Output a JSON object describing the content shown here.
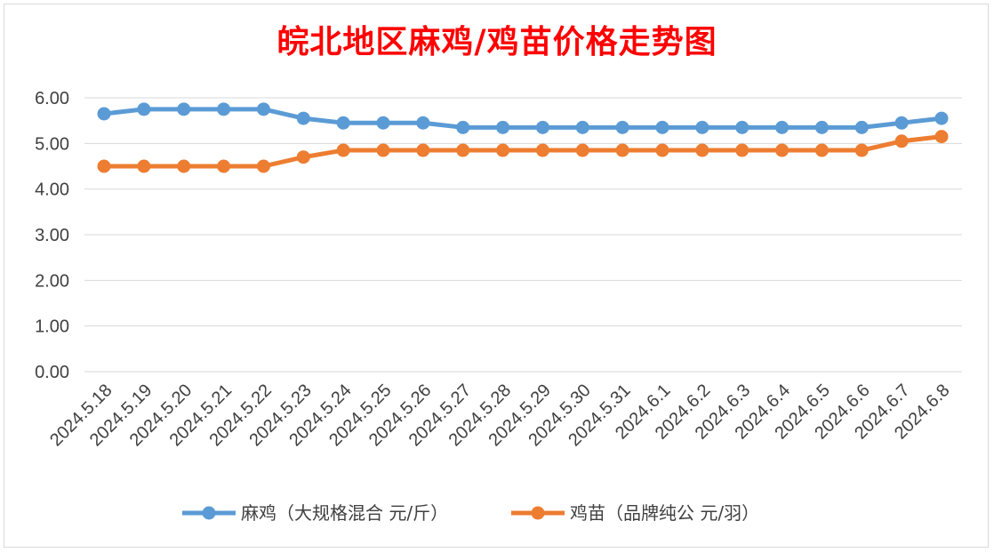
{
  "chart_data": {
    "type": "line",
    "title": "皖北地区麻鸡/鸡苗价格走势图",
    "xlabel": "",
    "ylabel": "",
    "ylim": [
      0,
      6
    ],
    "y_ticks": [
      "0.00",
      "1.00",
      "2.00",
      "3.00",
      "4.00",
      "5.00",
      "6.00"
    ],
    "categories": [
      "2024.5.18",
      "2024.5.19",
      "2024.5.20",
      "2024.5.21",
      "2024.5.22",
      "2024.5.23",
      "2024.5.24",
      "2024.5.25",
      "2024.5.26",
      "2024.5.27",
      "2024.5.28",
      "2024.5.29",
      "2024.5.30",
      "2024.5.31",
      "2024.6.1",
      "2024.6.2",
      "2024.6.3",
      "2024.6.4",
      "2024.6.5",
      "2024.6.6",
      "2024.6.7",
      "2024.6.8"
    ],
    "series": [
      {
        "name": "麻鸡（大规格混合 元/斤）",
        "color": "#5b9bd5",
        "values": [
          5.65,
          5.75,
          5.75,
          5.75,
          5.75,
          5.55,
          5.45,
          5.45,
          5.45,
          5.35,
          5.35,
          5.35,
          5.35,
          5.35,
          5.35,
          5.35,
          5.35,
          5.35,
          5.35,
          5.35,
          5.45,
          5.55
        ]
      },
      {
        "name": "鸡苗（品牌纯公 元/羽）",
        "color": "#ed7d31",
        "values": [
          4.5,
          4.5,
          4.5,
          4.5,
          4.5,
          4.7,
          4.85,
          4.85,
          4.85,
          4.85,
          4.85,
          4.85,
          4.85,
          4.85,
          4.85,
          4.85,
          4.85,
          4.85,
          4.85,
          4.85,
          5.05,
          5.15
        ]
      }
    ],
    "grid": true,
    "legend_position": "bottom"
  }
}
